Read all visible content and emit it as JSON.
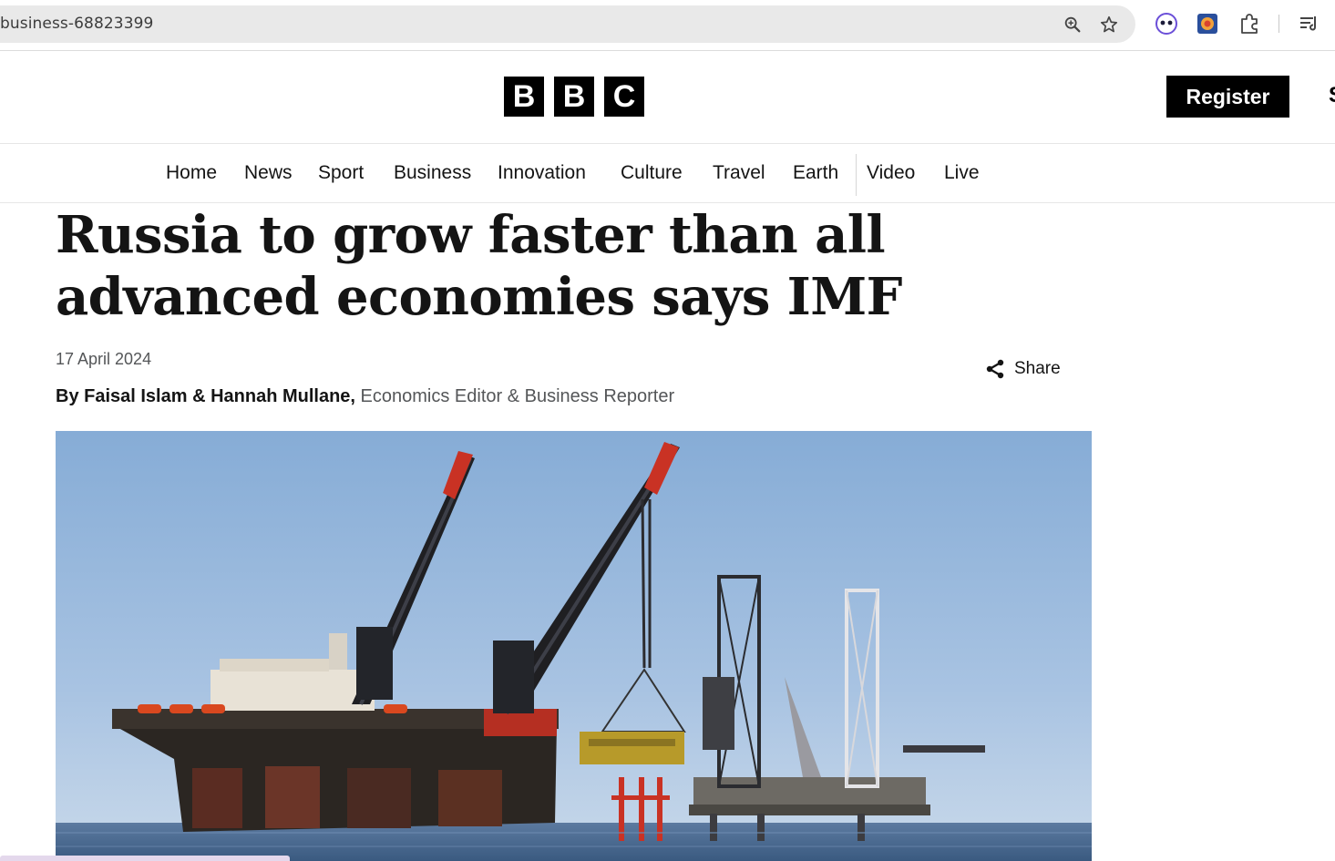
{
  "browser": {
    "url": "business-68823399",
    "icons": [
      "zoom-icon",
      "bookmark-star-icon",
      "extension-face-icon",
      "extension-colorful-icon",
      "extensions-puzzle-icon",
      "reading-list-icon"
    ]
  },
  "masthead": {
    "logo_letters": [
      "B",
      "B",
      "C"
    ],
    "register_label": "Register",
    "signin_partial": "S"
  },
  "nav": {
    "items": [
      "Home",
      "News",
      "Sport",
      "Business",
      "Innovation",
      "Culture",
      "Travel",
      "Earth",
      "Video",
      "Live"
    ]
  },
  "article": {
    "headline": "Russia to grow faster than all advanced economies says IMF",
    "date": "17 April 2024",
    "byline_authors": "By Faisal Islam & Hannah Mullane,",
    "byline_roles": "Economics Editor & Business Reporter",
    "share_label": "Share",
    "hero_image": "offshore-oil-platforms-with-cranes-at-sea"
  },
  "colors": {
    "brand_black": "#000000",
    "text": "#141414",
    "muted_text": "#545658",
    "sky": "#8fb3d8",
    "sea": "#3f5f86"
  }
}
